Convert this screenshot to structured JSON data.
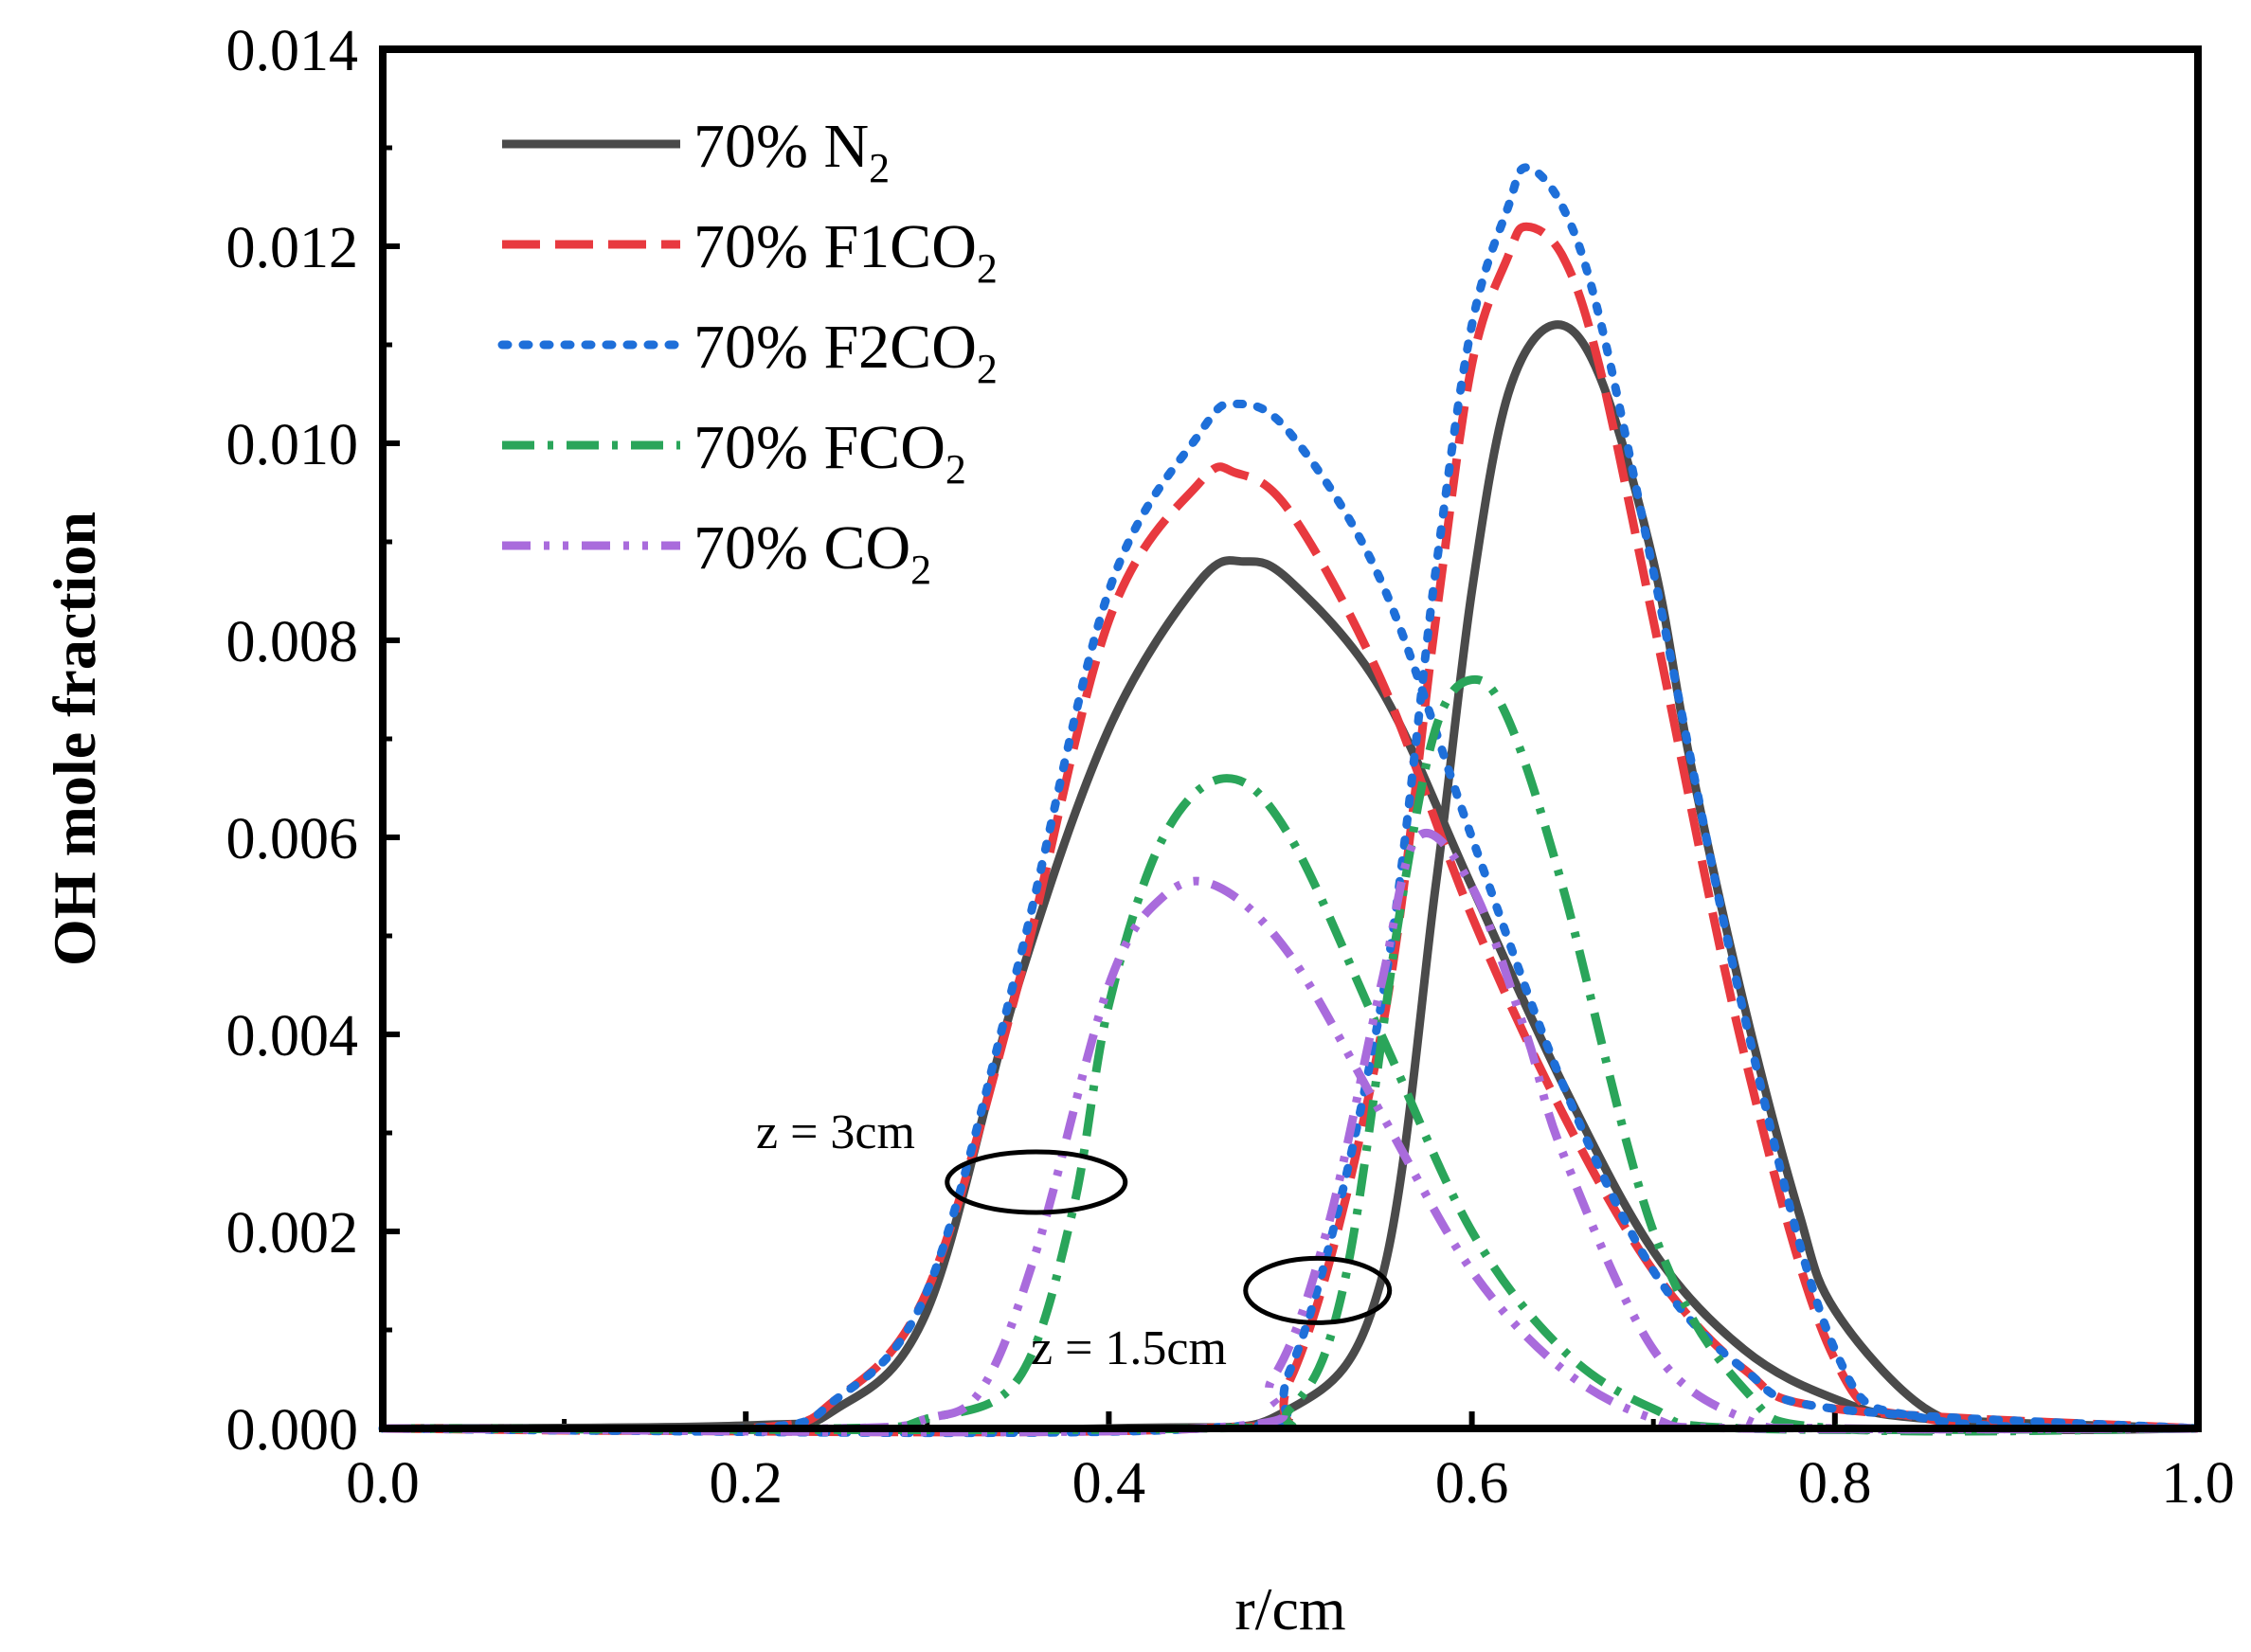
{
  "chart_data": {
    "type": "line",
    "title": "",
    "xlabel": "r/cm",
    "ylabel": "OH mole fraction",
    "xlim": [
      0.0,
      1.0
    ],
    "ylim": [
      0.0,
      0.014
    ],
    "xticks": [
      "0.0",
      "0.2",
      "0.4",
      "0.6",
      "0.8",
      "1.0"
    ],
    "yticks": [
      "0.000",
      "0.002",
      "0.004",
      "0.006",
      "0.008",
      "0.010",
      "0.012",
      "0.014"
    ],
    "legend_position": "top-left",
    "series": [
      {
        "name": "70% N",
        "sub": "2",
        "color": "#4a4a4a",
        "style": "solid",
        "z3": [
          [
            0,
            0
          ],
          [
            0.2,
            3e-05
          ],
          [
            0.25,
            0.0002
          ],
          [
            0.3,
            0.0012
          ],
          [
            0.35,
            0.0045
          ],
          [
            0.4,
            0.0071
          ],
          [
            0.45,
            0.0086
          ],
          [
            0.475,
            0.0088
          ],
          [
            0.5,
            0.0086
          ],
          [
            0.55,
            0.0075
          ],
          [
            0.6,
            0.0055
          ],
          [
            0.65,
            0.0035
          ],
          [
            0.7,
            0.0018
          ],
          [
            0.75,
            0.0008
          ],
          [
            0.8,
            0.0003
          ],
          [
            0.85,
            0.0001
          ],
          [
            1.0,
            0
          ]
        ],
        "z15": [
          [
            0,
            0
          ],
          [
            0.4,
            0
          ],
          [
            0.5,
            0.0002
          ],
          [
            0.55,
            0.0015
          ],
          [
            0.58,
            0.0055
          ],
          [
            0.6,
            0.0085
          ],
          [
            0.62,
            0.0105
          ],
          [
            0.645,
            0.0112
          ],
          [
            0.67,
            0.0107
          ],
          [
            0.7,
            0.0088
          ],
          [
            0.72,
            0.0068
          ],
          [
            0.75,
            0.0043
          ],
          [
            0.78,
            0.0022
          ],
          [
            0.8,
            0.0012
          ],
          [
            0.85,
            0.0002
          ],
          [
            0.9,
            0
          ],
          [
            1.0,
            0
          ]
        ]
      },
      {
        "name": "70% F1CO",
        "sub": "2",
        "color": "#e8393f",
        "style": "dash",
        "z3": [
          [
            0,
            0
          ],
          [
            0.2,
            0
          ],
          [
            0.25,
            0.0003
          ],
          [
            0.3,
            0.0014
          ],
          [
            0.35,
            0.0045
          ],
          [
            0.4,
            0.0082
          ],
          [
            0.45,
            0.0096
          ],
          [
            0.47,
            0.0097
          ],
          [
            0.5,
            0.0093
          ],
          [
            0.55,
            0.0076
          ],
          [
            0.6,
            0.0052
          ],
          [
            0.65,
            0.0032
          ],
          [
            0.7,
            0.0016
          ],
          [
            0.75,
            0.0006
          ],
          [
            0.8,
            0.0002
          ],
          [
            1.0,
            0
          ]
        ],
        "z15": [
          [
            0,
            0
          ],
          [
            0.45,
            0
          ],
          [
            0.5,
            0.0005
          ],
          [
            0.55,
            0.004
          ],
          [
            0.58,
            0.0082
          ],
          [
            0.6,
            0.0108
          ],
          [
            0.62,
            0.0119
          ],
          [
            0.63,
            0.0122
          ],
          [
            0.65,
            0.0119
          ],
          [
            0.67,
            0.0108
          ],
          [
            0.7,
            0.0082
          ],
          [
            0.75,
            0.0038
          ],
          [
            0.8,
            0.0007
          ],
          [
            0.85,
            0.0001
          ],
          [
            1.0,
            0
          ]
        ]
      },
      {
        "name": "70% F2CO",
        "sub": "2",
        "color": "#1e6fd9",
        "style": "dot",
        "z3": [
          [
            0,
            0
          ],
          [
            0.2,
            0
          ],
          [
            0.25,
            0.0003
          ],
          [
            0.3,
            0.0014
          ],
          [
            0.35,
            0.0047
          ],
          [
            0.4,
            0.0085
          ],
          [
            0.45,
            0.0101
          ],
          [
            0.47,
            0.0104
          ],
          [
            0.5,
            0.0101
          ],
          [
            0.55,
            0.0086
          ],
          [
            0.6,
            0.006
          ],
          [
            0.65,
            0.0035
          ],
          [
            0.7,
            0.0016
          ],
          [
            0.75,
            0.0006
          ],
          [
            0.8,
            0.0002
          ],
          [
            1.0,
            0
          ]
        ],
        "z15": [
          [
            0,
            0
          ],
          [
            0.45,
            0
          ],
          [
            0.5,
            0.0006
          ],
          [
            0.55,
            0.0043
          ],
          [
            0.58,
            0.0087
          ],
          [
            0.6,
            0.0112
          ],
          [
            0.62,
            0.0124
          ],
          [
            0.63,
            0.0128
          ],
          [
            0.65,
            0.0124
          ],
          [
            0.67,
            0.0113
          ],
          [
            0.7,
            0.0087
          ],
          [
            0.75,
            0.0042
          ],
          [
            0.8,
            0.0008
          ],
          [
            0.85,
            0.0001
          ],
          [
            1.0,
            0
          ]
        ]
      },
      {
        "name": "70% FCO",
        "sub": "2",
        "color": "#2aa55a",
        "style": "dashdot",
        "z3": [
          [
            0,
            0
          ],
          [
            0.25,
            0
          ],
          [
            0.3,
            0.0001
          ],
          [
            0.35,
            0.0005
          ],
          [
            0.38,
            0.0022
          ],
          [
            0.4,
            0.0043
          ],
          [
            0.43,
            0.006
          ],
          [
            0.465,
            0.0066
          ],
          [
            0.5,
            0.006
          ],
          [
            0.55,
            0.004
          ],
          [
            0.6,
            0.002
          ],
          [
            0.65,
            0.0008
          ],
          [
            0.7,
            0.0002
          ],
          [
            0.75,
            0
          ],
          [
            1.0,
            0
          ]
        ],
        "z15": [
          [
            0,
            0
          ],
          [
            0.45,
            0
          ],
          [
            0.5,
            0.0002
          ],
          [
            0.53,
            0.0015
          ],
          [
            0.56,
            0.0052
          ],
          [
            0.58,
            0.0071
          ],
          [
            0.6,
            0.0076
          ],
          [
            0.62,
            0.0072
          ],
          [
            0.65,
            0.0055
          ],
          [
            0.7,
            0.002
          ],
          [
            0.75,
            0.0004
          ],
          [
            0.8,
            0
          ],
          [
            1.0,
            0
          ]
        ]
      },
      {
        "name": "70% CO",
        "sub": "2",
        "color": "#a96bdc",
        "style": "dashdotdot",
        "z3": [
          [
            0,
            0
          ],
          [
            0.25,
            0
          ],
          [
            0.3,
            0.0001
          ],
          [
            0.33,
            0.0004
          ],
          [
            0.36,
            0.0018
          ],
          [
            0.4,
            0.0045
          ],
          [
            0.43,
            0.0054
          ],
          [
            0.46,
            0.0055
          ],
          [
            0.5,
            0.0048
          ],
          [
            0.55,
            0.0032
          ],
          [
            0.6,
            0.0016
          ],
          [
            0.65,
            0.0006
          ],
          [
            0.7,
            0.0001
          ],
          [
            0.75,
            0
          ],
          [
            1.0,
            0
          ]
        ],
        "z15": [
          [
            0,
            0
          ],
          [
            0.45,
            0
          ],
          [
            0.49,
            0.0005
          ],
          [
            0.52,
            0.002
          ],
          [
            0.55,
            0.0045
          ],
          [
            0.57,
            0.006
          ],
          [
            0.6,
            0.0055
          ],
          [
            0.63,
            0.004
          ],
          [
            0.65,
            0.0028
          ],
          [
            0.7,
            0.0008
          ],
          [
            0.75,
            0.0001
          ],
          [
            0.8,
            0
          ],
          [
            1.0,
            0
          ]
        ]
      }
    ],
    "annotations": [
      {
        "text": "z = 3cm",
        "x": 0.36,
        "y": 0.0025
      },
      {
        "text": "z = 1.5cm",
        "x": 0.515,
        "y": 0.0014
      }
    ]
  }
}
